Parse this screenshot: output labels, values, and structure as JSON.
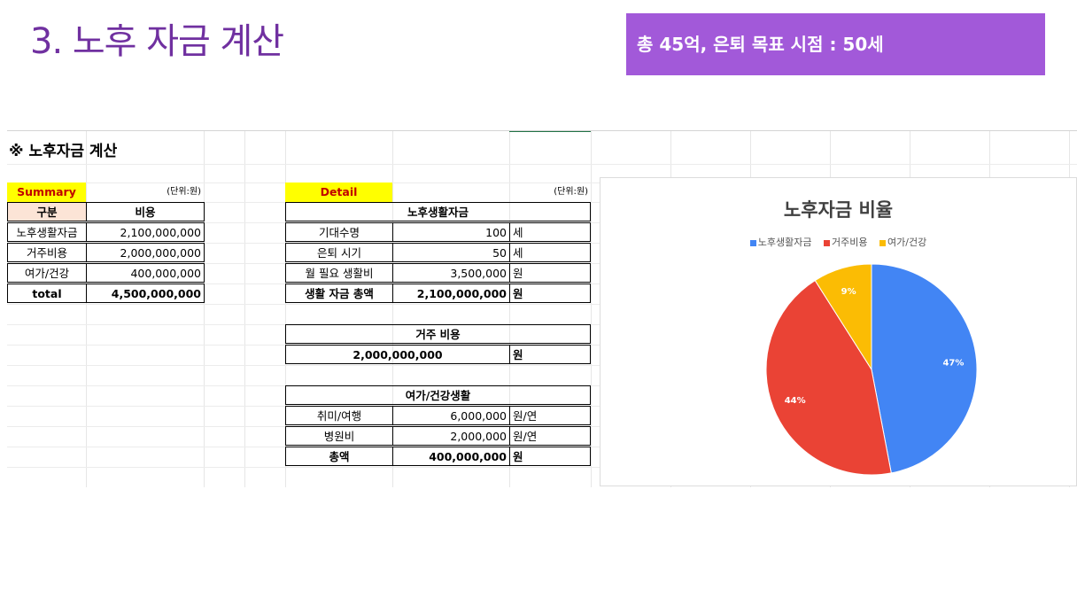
{
  "slide": {
    "title": "3. 노후 자금 계산",
    "banner": "총 45억, 은퇴 목표 시점 : 50세"
  },
  "sheet": {
    "title": "※ 노후자금 계산",
    "summary": {
      "label": "Summary",
      "unit": "(단위:원)",
      "headers": [
        "구분",
        "비용"
      ],
      "rows": [
        {
          "item": "노후생활자금",
          "cost": "2,100,000,000"
        },
        {
          "item": "거주비용",
          "cost": "2,000,000,000"
        },
        {
          "item": "여가/건강",
          "cost": "400,000,000"
        },
        {
          "item": "total",
          "cost": "4,500,000,000"
        }
      ]
    },
    "detail": {
      "label": "Detail",
      "unit": "(단위:원)",
      "living": {
        "header": "노후생활자금",
        "rows": [
          {
            "label": "기대수명",
            "value": "100",
            "unit": "세"
          },
          {
            "label": "은퇴 시기",
            "value": "50",
            "unit": "세"
          },
          {
            "label": "월 필요 생활비",
            "value": "3,500,000",
            "unit": "원"
          },
          {
            "label": "생활 자금 총액",
            "value": "2,100,000,000",
            "unit": "원"
          }
        ]
      },
      "housing": {
        "header": "거주 비용",
        "value": "2,000,000,000",
        "unit": "원"
      },
      "leisure": {
        "header": "여가/건강생활",
        "rows": [
          {
            "label": "취미/여행",
            "value": "6,000,000",
            "unit": "원/연"
          },
          {
            "label": "병원비",
            "value": "2,000,000",
            "unit": "원/연"
          },
          {
            "label": "총액",
            "value": "400,000,000",
            "unit": "원"
          }
        ]
      }
    }
  },
  "chart_data": {
    "type": "pie",
    "title": "노후자금 비율",
    "categories": [
      "노후생활자금",
      "거주비용",
      "여가/건강"
    ],
    "values": [
      47,
      44,
      9
    ],
    "labels": [
      "47%",
      "44%",
      "9%"
    ],
    "colors": [
      "#4285F4",
      "#EA4335",
      "#FBBC04"
    ],
    "legend_position": "top"
  }
}
